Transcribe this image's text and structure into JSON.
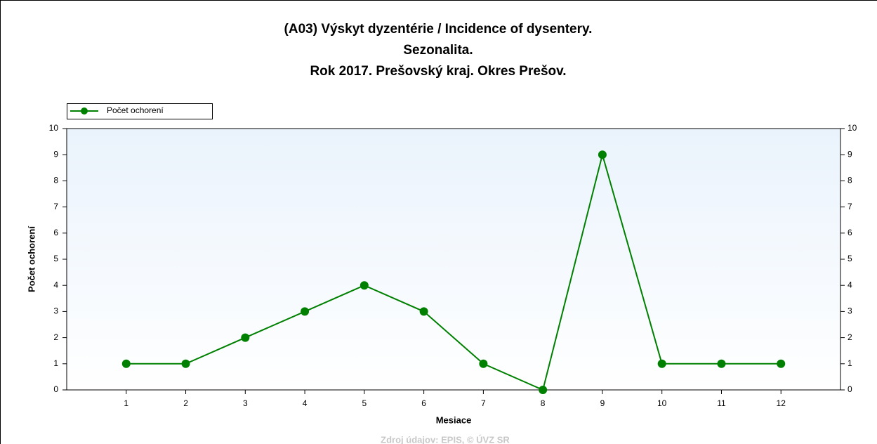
{
  "chart_data": {
    "type": "line",
    "title": [
      "(A03) Výskyt dyzentérie / Incidence of dysentery.",
      "Sezonalita.",
      "Rok 2017. Prešovský kraj. Okres Prešov."
    ],
    "x_label": "Mesiace",
    "y_label": "Počet ochorení",
    "source": "Zdroj údajov: EPIS, © ÚVZ SR",
    "x": [
      1,
      2,
      3,
      4,
      5,
      6,
      7,
      8,
      9,
      10,
      11,
      12
    ],
    "series": [
      {
        "name": "Počet ochorení",
        "color": "#008000",
        "values": [
          1,
          1,
          2,
          3,
          4,
          3,
          1,
          0,
          9,
          1,
          1,
          1
        ]
      }
    ],
    "xlim": [
      0,
      13
    ],
    "xticks": [
      1,
      2,
      3,
      4,
      5,
      6,
      7,
      8,
      9,
      10,
      11,
      12
    ],
    "ylim": [
      0,
      10
    ],
    "yticks": [
      0,
      1,
      2,
      3,
      4,
      5,
      6,
      7,
      8,
      9,
      10
    ],
    "y2lim": [
      0,
      10
    ],
    "y2ticks": [
      0,
      1,
      2,
      3,
      4,
      5,
      6,
      7,
      8,
      9,
      10
    ],
    "legend": "top-left"
  }
}
